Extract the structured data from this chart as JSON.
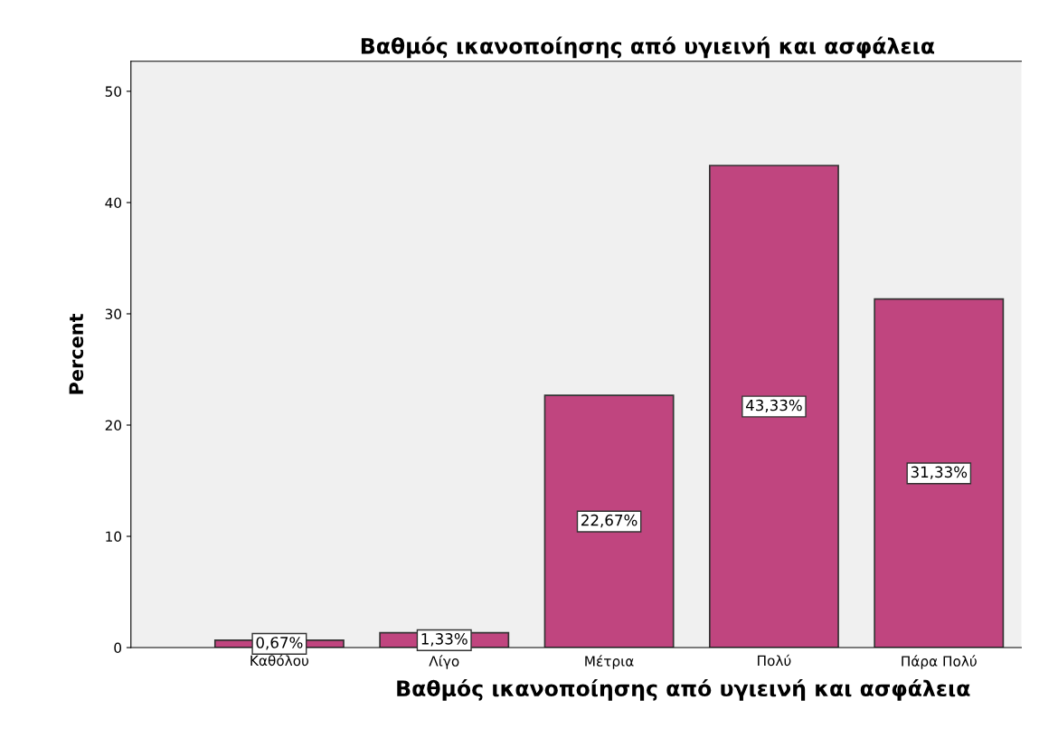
{
  "chart_data": {
    "type": "bar",
    "title": "Βαθμός ικανοποίησης από υγιεινή και ασφάλεια",
    "xlabel": "Βαθμός ικανοποίησης από υγιεινή και ασφάλεια",
    "ylabel": "Percent",
    "categories": [
      "Καθόλου",
      "Λίγο",
      "Μέτρια",
      "Πολύ",
      "Πάρα Πολύ"
    ],
    "values": [
      0.67,
      1.33,
      22.67,
      43.33,
      31.33
    ],
    "value_labels": [
      "0,67%",
      "1,33%",
      "22,67%",
      "43,33%",
      "31,33%"
    ],
    "color": "#c0457f",
    "ylim": [
      0,
      52.7
    ],
    "yticks": [
      0,
      10,
      20,
      30,
      40,
      50
    ],
    "grid": false
  }
}
